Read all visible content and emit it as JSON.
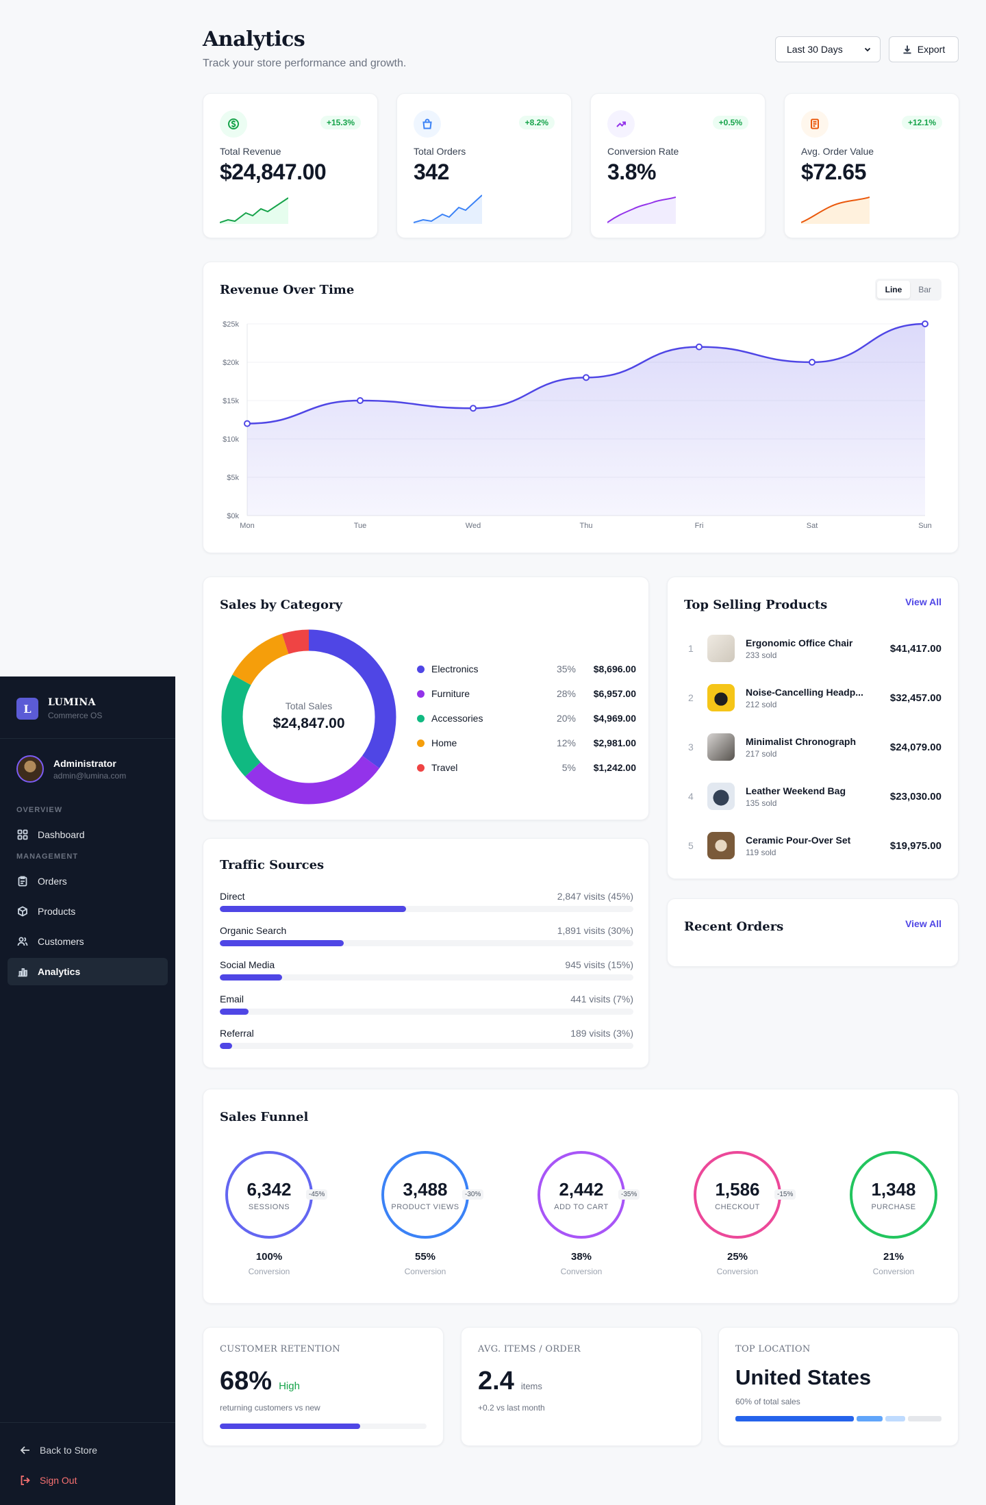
{
  "brand": {
    "initial": "L",
    "name": "LUMINA",
    "subtitle": "Commerce OS"
  },
  "user": {
    "name": "Administrator",
    "email": "admin@lumina.com"
  },
  "nav": {
    "overview_label": "OVERVIEW",
    "management_label": "MANAGEMENT",
    "dashboard": "Dashboard",
    "orders": "Orders",
    "products": "Products",
    "customers": "Customers",
    "analytics": "Analytics"
  },
  "sidebar_bottom": {
    "back": "Back to Store",
    "signout": "Sign Out"
  },
  "header": {
    "title": "Analytics",
    "subtitle": "Track your store performance and growth.",
    "range": "Last 30 Days",
    "export": "Export"
  },
  "stats": [
    {
      "label": "Total Revenue",
      "value": "$24,847.00",
      "change": "+15.3%",
      "icon": "dollar-icon",
      "color": "#16a34a"
    },
    {
      "label": "Total Orders",
      "value": "342",
      "change": "+8.2%",
      "icon": "shopping-bag-icon",
      "color": "#3b82f6"
    },
    {
      "label": "Conversion Rate",
      "value": "3.8%",
      "change": "+0.5%",
      "icon": "trending-up-icon",
      "color": "#9333ea"
    },
    {
      "label": "Avg. Order Value",
      "value": "$72.65",
      "change": "+12.1%",
      "icon": "receipt-icon",
      "color": "#ea580c"
    }
  ],
  "revenue": {
    "title": "Revenue Over Time",
    "toggle_line": "Line",
    "toggle_bar": "Bar"
  },
  "chart_data": {
    "type": "area",
    "categories": [
      "Mon",
      "Tue",
      "Wed",
      "Thu",
      "Fri",
      "Sat",
      "Sun"
    ],
    "values": [
      12000,
      15000,
      14000,
      18000,
      22000,
      20000,
      25000
    ],
    "y_ticks": [
      "$0k",
      "$5k",
      "$10k",
      "$15k",
      "$20k",
      "$25k"
    ],
    "ylim": [
      0,
      25000
    ],
    "grid": true,
    "color": "#4f46e5"
  },
  "category": {
    "title": "Sales by Category",
    "center_label": "Total Sales",
    "center_value": "$24,847.00",
    "items": [
      {
        "name": "Electronics",
        "pct": "35%",
        "share": 35,
        "value": "$8,696.00",
        "color": "#4f46e5"
      },
      {
        "name": "Furniture",
        "pct": "28%",
        "share": 28,
        "value": "$6,957.00",
        "color": "#9333ea"
      },
      {
        "name": "Accessories",
        "pct": "20%",
        "share": 20,
        "value": "$4,969.00",
        "color": "#10b981"
      },
      {
        "name": "Home",
        "pct": "12%",
        "share": 12,
        "value": "$2,981.00",
        "color": "#f59e0b"
      },
      {
        "name": "Travel",
        "pct": "5%",
        "share": 5,
        "value": "$1,242.00",
        "color": "#ef4444"
      }
    ]
  },
  "top_products": {
    "title": "Top Selling Products",
    "view_all": "View All",
    "items": [
      {
        "rank": "1",
        "name": "Ergonomic Office Chair",
        "sold": "233 sold",
        "price": "$41,417.00",
        "thumb": "#e5e1da"
      },
      {
        "rank": "2",
        "name": "Noise-Cancelling Headp...",
        "sold": "212 sold",
        "price": "$32,457.00",
        "thumb": "#f5c518"
      },
      {
        "rank": "3",
        "name": "Minimalist Chronograph",
        "sold": "217 sold",
        "price": "$24,079.00",
        "thumb": "#a8a29e"
      },
      {
        "rank": "4",
        "name": "Leather Weekend Bag",
        "sold": "135 sold",
        "price": "$23,030.00",
        "thumb": "#cbd5e1"
      },
      {
        "rank": "5",
        "name": "Ceramic Pour-Over Set",
        "sold": "119 sold",
        "price": "$19,975.00",
        "thumb": "#8b6f4e"
      }
    ]
  },
  "recent_orders": {
    "title": "Recent Orders",
    "view_all": "View All"
  },
  "traffic": {
    "title": "Traffic Sources",
    "items": [
      {
        "name": "Direct",
        "visits": "2,847 visits (45%)",
        "share": 45
      },
      {
        "name": "Organic Search",
        "visits": "1,891 visits (30%)",
        "share": 30
      },
      {
        "name": "Social Media",
        "visits": "945 visits (15%)",
        "share": 15
      },
      {
        "name": "Email",
        "visits": "441 visits (7%)",
        "share": 7
      },
      {
        "name": "Referral",
        "visits": "189 visits (3%)",
        "share": 3
      }
    ]
  },
  "funnel": {
    "title": "Sales Funnel",
    "conversion_label": "Conversion",
    "steps": [
      {
        "value": "6,342",
        "label": "SESSIONS",
        "pct": "100%",
        "drop": "-45%",
        "color": "#6366f1"
      },
      {
        "value": "3,488",
        "label": "PRODUCT VIEWS",
        "pct": "55%",
        "drop": "-30%",
        "color": "#3b82f6"
      },
      {
        "value": "2,442",
        "label": "ADD TO CART",
        "pct": "38%",
        "drop": "-35%",
        "color": "#a855f7"
      },
      {
        "value": "1,586",
        "label": "CHECKOUT",
        "pct": "25%",
        "drop": "-15%",
        "color": "#ec4899"
      },
      {
        "value": "1,348",
        "label": "PURCHASE",
        "pct": "21%",
        "drop": "",
        "color": "#22c55e"
      }
    ]
  },
  "kpis": {
    "retention": {
      "label": "CUSTOMER RETENTION",
      "value": "68%",
      "tag": "High",
      "note": "returning customers vs new",
      "level": 68
    },
    "items": {
      "label": "AVG. ITEMS / ORDER",
      "value": "2.4",
      "unit": "items",
      "note": "+0.2 vs last month"
    },
    "location": {
      "label": "TOP LOCATION",
      "value": "United States",
      "note": "60% of total sales",
      "segments": [
        60,
        13,
        10,
        17
      ]
    }
  }
}
